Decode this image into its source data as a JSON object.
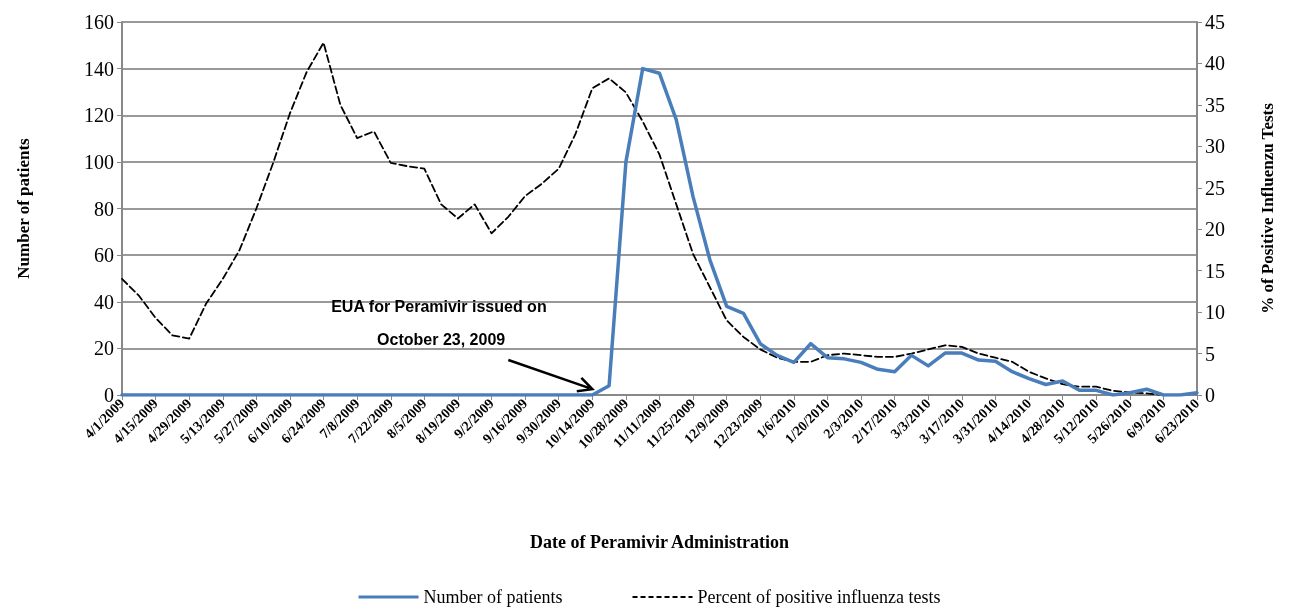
{
  "chart_data": {
    "type": "line",
    "xlabel": "Date of Peramivir Administration",
    "ylabel": "Number of patients",
    "y2label": "% of Positive Influenzu Tests",
    "categories": [
      "4/1/2009",
      null,
      "4/15/2009",
      null,
      "4/29/2009",
      null,
      "5/13/2009",
      null,
      "5/27/2009",
      null,
      "6/10/2009",
      null,
      "6/24/2009",
      null,
      "7/8/2009",
      null,
      "7/22/2009",
      null,
      "8/5/2009",
      null,
      "8/19/2009",
      null,
      "9/2/2009",
      null,
      "9/16/2009",
      null,
      "9/30/2009",
      null,
      "10/14/2009",
      null,
      "10/28/2009",
      null,
      "11/11/2009",
      null,
      "11/25/2009",
      null,
      "12/9/2009",
      null,
      "12/23/2009",
      null,
      "1/6/2010",
      null,
      "1/20/2010",
      null,
      "2/3/2010",
      null,
      "2/17/2010",
      null,
      "3/3/2010",
      null,
      "3/17/2010",
      null,
      "3/31/2010",
      null,
      "4/14/2010",
      null,
      "4/28/2010",
      null,
      "5/12/2010",
      null,
      "5/26/2010",
      null,
      "6/9/2010",
      null,
      "6/23/2010"
    ],
    "series": [
      {
        "name": "Number of patients",
        "color": "#4a7ebb",
        "line_style": "solid",
        "values": [
          0,
          0,
          0,
          0,
          0,
          0,
          0,
          0,
          0,
          0,
          0,
          0,
          0,
          0,
          0,
          0,
          0,
          0,
          0,
          0,
          0,
          0,
          0,
          0,
          0,
          0,
          0,
          0,
          0,
          4,
          100,
          140,
          138,
          118,
          85,
          58,
          38,
          35,
          22,
          17,
          14,
          22,
          16,
          15.5,
          14,
          11,
          10,
          17,
          12.5,
          18,
          18,
          15,
          14.5,
          10,
          7,
          4.5,
          6,
          2,
          2,
          0,
          1,
          2.5,
          0,
          0,
          1
        ]
      },
      {
        "name": "Percent of positive influenza tests",
        "color": "#000000",
        "line_style": "dashed",
        "axis": "y2",
        "values": [
          14,
          12,
          9.3,
          7.2,
          6.8,
          11,
          14,
          17.5,
          22.5,
          28,
          34,
          39,
          42.5,
          35,
          31,
          31.8,
          28,
          27.6,
          27.3,
          23,
          21.3,
          23,
          19.5,
          21.5,
          24,
          25.5,
          27.3,
          31.5,
          37,
          38.2,
          36.5,
          33,
          29,
          23,
          17,
          13,
          9,
          7,
          5.5,
          4.5,
          4,
          4,
          4.8,
          5,
          4.8,
          4.6,
          4.6,
          5,
          5.5,
          6,
          5.8,
          5,
          4.5,
          4,
          2.8,
          2,
          1.3,
          1,
          1,
          0.5,
          0.3,
          0.2,
          0,
          0,
          0.2
        ]
      }
    ],
    "ylim": [
      0,
      160
    ],
    "yticks": [
      0,
      20,
      40,
      60,
      80,
      100,
      120,
      140,
      160
    ],
    "y2lim": [
      0,
      45
    ],
    "y2ticks": [
      0,
      5,
      10,
      15,
      20,
      25,
      30,
      35,
      40,
      45
    ],
    "grid": "y",
    "legend": "bottom",
    "marker": "none",
    "annotations": [
      "EUA for Peramivir issued on October 23, 2009"
    ]
  }
}
